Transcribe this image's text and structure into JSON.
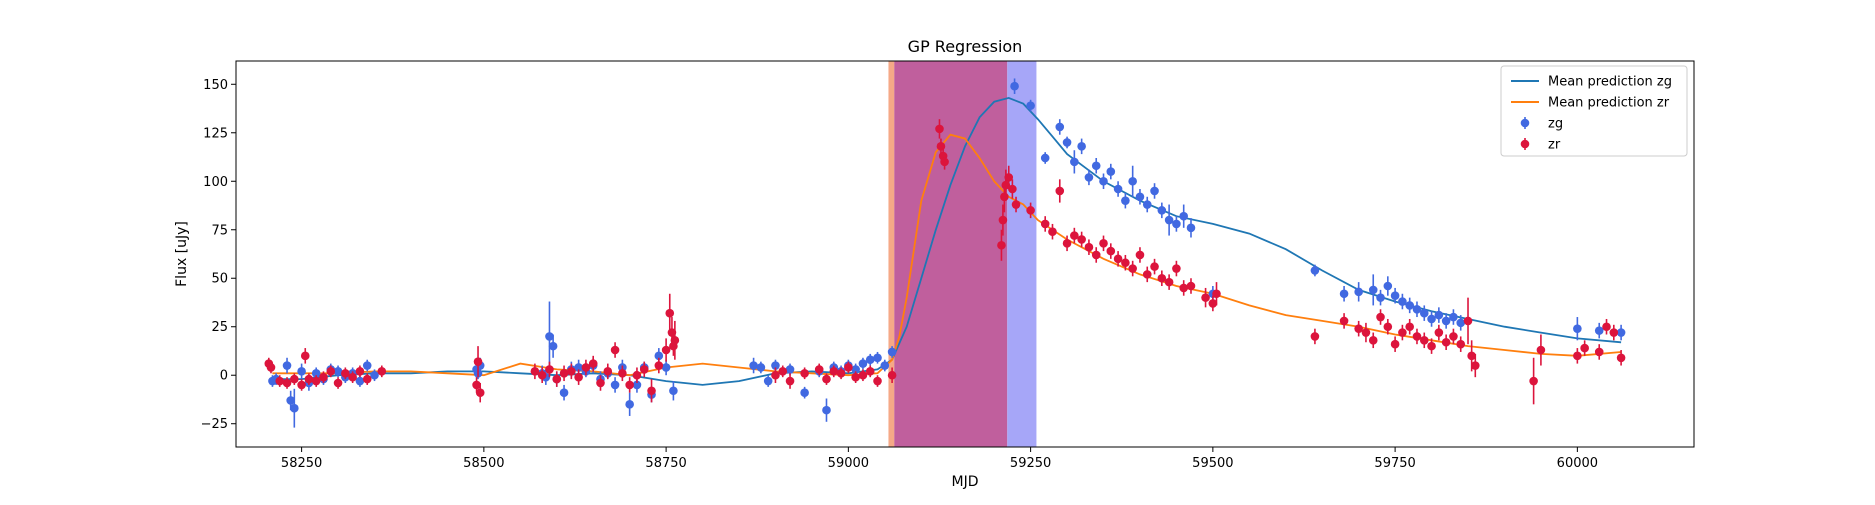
{
  "chart_data": {
    "type": "scatter",
    "title": "GP Regression",
    "xlabel": "MJD",
    "ylabel": "Flux [uJy]",
    "xlim": [
      58160,
      60160
    ],
    "ylim": [
      -37,
      162
    ],
    "xticks": [
      58250,
      58500,
      58750,
      59000,
      59250,
      59500,
      59750,
      60000
    ],
    "yticks": [
      -25,
      0,
      25,
      50,
      75,
      100,
      125,
      150
    ],
    "legend_position": "top-right",
    "grid": false,
    "shaded_regions": [
      {
        "x0": 59055,
        "x1": 59063,
        "color": "#f4a07a",
        "opacity": 0.9
      },
      {
        "x0": 59063,
        "x1": 59218,
        "color": "#b5438c",
        "opacity": 0.85
      },
      {
        "x0": 59218,
        "x1": 59258,
        "color": "#a6a6f8",
        "opacity": 1.0
      }
    ],
    "lines": [
      {
        "name": "Mean prediction zg",
        "color": "#1f77b4",
        "x": [
          58210,
          58250,
          58300,
          58350,
          58400,
          58450,
          58500,
          58550,
          58600,
          58650,
          58700,
          58750,
          58800,
          58850,
          58900,
          58950,
          59000,
          59040,
          59060,
          59080,
          59100,
          59120,
          59140,
          59160,
          59180,
          59200,
          59220,
          59240,
          59260,
          59280,
          59300,
          59350,
          59400,
          59450,
          59500,
          59550,
          59600,
          59650,
          59700,
          59750,
          59800,
          59850,
          59900,
          59950,
          60000,
          60060
        ],
        "y": [
          -2,
          -2,
          0,
          1,
          1,
          2,
          2,
          1,
          0,
          1,
          0,
          -3,
          -5,
          -3,
          1,
          2,
          1,
          3,
          8,
          25,
          50,
          75,
          98,
          118,
          133,
          141,
          143,
          140,
          132,
          123,
          114,
          100,
          90,
          82,
          78,
          73,
          65,
          54,
          44,
          38,
          33,
          29,
          25,
          22,
          19,
          17
        ]
      },
      {
        "name": "Mean prediction zr",
        "color": "#ff7f0e",
        "x": [
          58210,
          58250,
          58300,
          58350,
          58400,
          58450,
          58500,
          58550,
          58600,
          58650,
          58700,
          58750,
          58800,
          58850,
          58900,
          58950,
          59000,
          59040,
          59060,
          59070,
          59080,
          59100,
          59120,
          59140,
          59160,
          59180,
          59200,
          59220,
          59240,
          59260,
          59300,
          59350,
          59400,
          59450,
          59500,
          59550,
          59600,
          59650,
          59700,
          59750,
          59800,
          59850,
          59900,
          59950,
          60000,
          60060
        ],
        "y": [
          1,
          1,
          1,
          2,
          2,
          1,
          0,
          6,
          3,
          2,
          0,
          4,
          6,
          4,
          2,
          1,
          0,
          1,
          8,
          20,
          40,
          90,
          115,
          124,
          122,
          112,
          100,
          92,
          88,
          80,
          70,
          60,
          52,
          46,
          42,
          36,
          31,
          28,
          25,
          21,
          18,
          15,
          13,
          11,
          10,
          12
        ]
      }
    ],
    "series": [
      {
        "name": "zg",
        "color": "#4169e1",
        "x": [
          58210,
          58215,
          58230,
          58235,
          58240,
          58250,
          58260,
          58270,
          58280,
          58290,
          58300,
          58310,
          58320,
          58330,
          58340,
          58350,
          58490,
          58492,
          58495,
          58580,
          58585,
          58590,
          58595,
          58600,
          58610,
          58620,
          58630,
          58640,
          58650,
          58660,
          58670,
          58680,
          58690,
          58700,
          58710,
          58720,
          58730,
          58740,
          58750,
          58760,
          58870,
          58880,
          58890,
          58900,
          58920,
          58940,
          58960,
          58970,
          58980,
          58990,
          59000,
          59010,
          59020,
          59030,
          59040,
          59050,
          59060,
          59228,
          59250,
          59270,
          59290,
          59300,
          59310,
          59320,
          59330,
          59340,
          59350,
          59360,
          59370,
          59380,
          59390,
          59400,
          59410,
          59420,
          59430,
          59440,
          59450,
          59460,
          59470,
          59500,
          59640,
          59680,
          59700,
          59720,
          59730,
          59740,
          59750,
          59760,
          59770,
          59780,
          59790,
          59800,
          59810,
          59820,
          59830,
          59840,
          60000,
          60030,
          60060
        ],
        "y": [
          -3,
          -2,
          5,
          -13,
          -17,
          2,
          -4,
          1,
          -2,
          3,
          2,
          -1,
          1,
          -3,
          5,
          0,
          3,
          1,
          5,
          1,
          -1,
          20,
          15,
          -2,
          -9,
          3,
          4,
          2,
          5,
          -2,
          1,
          -5,
          4,
          -15,
          -5,
          4,
          -10,
          10,
          4,
          -8,
          5,
          4,
          -3,
          5,
          3,
          -9,
          2,
          -18,
          4,
          2,
          5,
          3,
          6,
          8,
          9,
          5,
          12,
          149,
          139,
          112,
          128,
          120,
          110,
          118,
          102,
          108,
          100,
          105,
          96,
          90,
          100,
          92,
          88,
          95,
          85,
          80,
          78,
          82,
          76,
          42,
          54,
          42,
          43,
          44,
          40,
          46,
          41,
          38,
          36,
          34,
          32,
          29,
          31,
          28,
          30,
          27,
          24,
          23,
          22
        ],
        "err": [
          3,
          3,
          4,
          5,
          10,
          4,
          4,
          3,
          3,
          3,
          3,
          3,
          3,
          3,
          3,
          3,
          4,
          3,
          4,
          4,
          4,
          18,
          6,
          4,
          4,
          4,
          4,
          3,
          4,
          4,
          3,
          4,
          4,
          6,
          4,
          3,
          4,
          4,
          4,
          5,
          4,
          3,
          3,
          3,
          3,
          3,
          3,
          6,
          3,
          3,
          3,
          3,
          3,
          3,
          3,
          3,
          3,
          4,
          3,
          3,
          4,
          3,
          6,
          4,
          4,
          4,
          4,
          4,
          4,
          4,
          8,
          4,
          4,
          4,
          4,
          8,
          4,
          6,
          5,
          4,
          3,
          4,
          5,
          8,
          4,
          5,
          4,
          4,
          4,
          4,
          4,
          4,
          4,
          4,
          4,
          4,
          6,
          4,
          4
        ]
      },
      {
        "name": "zr",
        "color": "#dc143c",
        "x": [
          58205,
          58208,
          58220,
          58230,
          58240,
          58250,
          58255,
          58260,
          58270,
          58280,
          58290,
          58300,
          58310,
          58320,
          58330,
          58340,
          58360,
          58490,
          58492,
          58495,
          58570,
          58580,
          58590,
          58600,
          58610,
          58620,
          58630,
          58640,
          58650,
          58660,
          58670,
          58680,
          58690,
          58700,
          58710,
          58720,
          58730,
          58740,
          58750,
          58755,
          58758,
          58760,
          58762,
          58900,
          58910,
          58920,
          58940,
          58960,
          58970,
          58980,
          58990,
          59000,
          59010,
          59020,
          59030,
          59040,
          59060,
          59125,
          59127,
          59130,
          59132,
          59210,
          59212,
          59214,
          59216,
          59220,
          59225,
          59230,
          59250,
          59270,
          59280,
          59290,
          59300,
          59310,
          59320,
          59330,
          59340,
          59350,
          59360,
          59370,
          59380,
          59390,
          59400,
          59410,
          59420,
          59430,
          59440,
          59450,
          59460,
          59470,
          59490,
          59500,
          59505,
          59640,
          59680,
          59700,
          59710,
          59720,
          59730,
          59740,
          59750,
          59760,
          59770,
          59780,
          59790,
          59800,
          59810,
          59820,
          59830,
          59840,
          59850,
          59855,
          59860,
          59940,
          59950,
          60000,
          60010,
          60030,
          60040,
          60050,
          60060
        ],
        "y": [
          6,
          4,
          -3,
          -4,
          -2,
          -5,
          10,
          -2,
          -3,
          -1,
          2,
          -4,
          1,
          -1,
          2,
          -2,
          2,
          -5,
          7,
          -9,
          2,
          0,
          3,
          -2,
          1,
          2,
          -1,
          4,
          6,
          -4,
          2,
          13,
          1,
          -5,
          0,
          3,
          -8,
          5,
          13,
          32,
          22,
          15,
          18,
          0,
          2,
          -3,
          1,
          3,
          -2,
          2,
          1,
          4,
          -1,
          0,
          2,
          -3,
          0,
          127,
          118,
          113,
          110,
          67,
          80,
          92,
          98,
          102,
          96,
          88,
          85,
          78,
          74,
          95,
          68,
          72,
          70,
          66,
          62,
          68,
          64,
          60,
          58,
          55,
          62,
          52,
          56,
          50,
          48,
          55,
          45,
          46,
          40,
          37,
          42,
          20,
          28,
          24,
          22,
          18,
          30,
          25,
          16,
          22,
          25,
          20,
          18,
          15,
          22,
          17,
          20,
          16,
          28,
          10,
          5,
          -3,
          13,
          10,
          14,
          12,
          25,
          22,
          9
        ],
        "err": [
          3,
          3,
          3,
          3,
          3,
          3,
          4,
          3,
          3,
          3,
          3,
          3,
          3,
          3,
          3,
          3,
          3,
          4,
          8,
          5,
          4,
          4,
          4,
          4,
          4,
          4,
          4,
          4,
          4,
          4,
          4,
          4,
          4,
          4,
          4,
          4,
          6,
          4,
          6,
          10,
          8,
          5,
          10,
          4,
          3,
          4,
          3,
          3,
          3,
          3,
          3,
          3,
          3,
          3,
          3,
          3,
          4,
          5,
          4,
          4,
          4,
          8,
          8,
          8,
          8,
          6,
          5,
          4,
          4,
          4,
          4,
          6,
          4,
          4,
          4,
          4,
          4,
          4,
          4,
          4,
          4,
          4,
          4,
          4,
          4,
          4,
          4,
          4,
          4,
          4,
          5,
          4,
          6,
          4,
          4,
          4,
          5,
          4,
          4,
          4,
          4,
          4,
          4,
          4,
          4,
          4,
          4,
          4,
          4,
          4,
          12,
          8,
          6,
          12,
          8,
          4,
          4,
          4,
          4,
          4,
          4
        ]
      }
    ]
  }
}
